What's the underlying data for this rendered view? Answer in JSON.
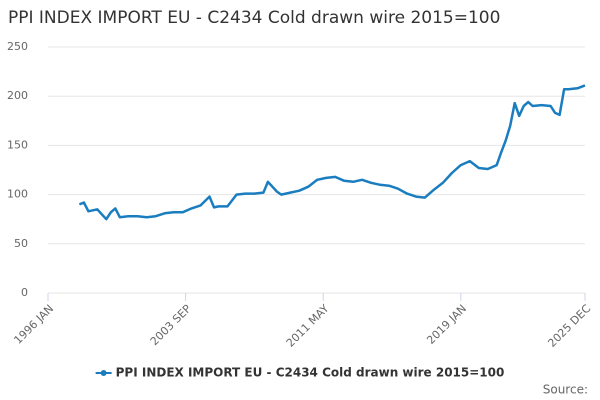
{
  "chart_data": {
    "type": "line",
    "title": "PPI INDEX IMPORT EU - C2434 Cold drawn wire 2015=100",
    "source": "Source:",
    "x": [
      "1997-10",
      "1998-01",
      "1998-04",
      "1998-07",
      "1998-10",
      "1999-01",
      "1999-04",
      "1999-07",
      "1999-10",
      "2000-01",
      "2000-07",
      "2001-01",
      "2001-07",
      "2002-01",
      "2002-07",
      "2003-01",
      "2003-07",
      "2004-01",
      "2004-07",
      "2005-01",
      "2005-04",
      "2005-07",
      "2006-01",
      "2006-07",
      "2007-01",
      "2007-07",
      "2008-01",
      "2008-04",
      "2008-07",
      "2008-10",
      "2009-01",
      "2009-07",
      "2010-01",
      "2010-07",
      "2011-01",
      "2011-07",
      "2012-01",
      "2012-07",
      "2013-01",
      "2013-07",
      "2014-01",
      "2014-07",
      "2015-01",
      "2015-07",
      "2016-01",
      "2016-07",
      "2017-01",
      "2017-07",
      "2018-01",
      "2018-07",
      "2019-01",
      "2019-07",
      "2020-01",
      "2020-07",
      "2021-01",
      "2021-04",
      "2021-07",
      "2021-10",
      "2022-01",
      "2022-04",
      "2022-07",
      "2022-10",
      "2023-01",
      "2023-07",
      "2024-01",
      "2024-04",
      "2024-07",
      "2024-10",
      "2025-01",
      "2025-07",
      "2025-12"
    ],
    "series": [
      {
        "name": "PPI INDEX IMPORT EU - C2434 Cold drawn wire 2015=100",
        "color": "#1a7dc0",
        "values": [
          90,
          92,
          83,
          84,
          85,
          80,
          75,
          82,
          86,
          77,
          78,
          78,
          77,
          78,
          81,
          82,
          82,
          86,
          89,
          98,
          87,
          88,
          88,
          100,
          101,
          101,
          102,
          113,
          108,
          103,
          100,
          102,
          104,
          108,
          115,
          117,
          118,
          114,
          113,
          115,
          112,
          110,
          109,
          106,
          101,
          98,
          97,
          105,
          112,
          122,
          130,
          134,
          127,
          126,
          130,
          143,
          155,
          170,
          193,
          180,
          190,
          194,
          190,
          191,
          190,
          183,
          181,
          207,
          207,
          208,
          211
        ]
      }
    ],
    "xlim": [
      "1996-01",
      "2025-12"
    ],
    "xticks": [
      {
        "value": "1996-01",
        "label": "1996 JAN"
      },
      {
        "value": "2003-09",
        "label": "2003 SEP"
      },
      {
        "value": "2011-05",
        "label": "2011 MAY"
      },
      {
        "value": "2019-01",
        "label": "2019 JAN"
      },
      {
        "value": "2025-12",
        "label": "2025 DEC"
      }
    ],
    "ylim": [
      0,
      250
    ],
    "yticks": [
      0,
      50,
      100,
      150,
      200,
      250
    ],
    "grid": true,
    "legend": "bottom"
  }
}
